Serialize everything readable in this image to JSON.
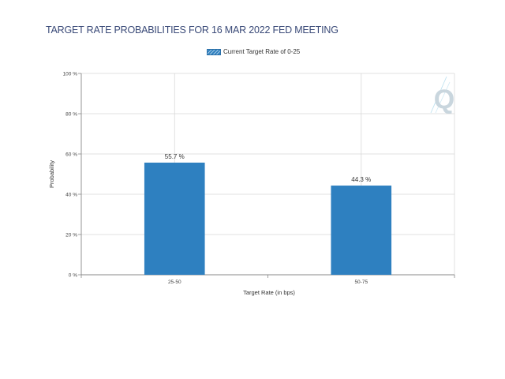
{
  "chart_data": {
    "type": "bar",
    "title": "TARGET RATE PROBABILITIES FOR 16 MAR 2022 FED MEETING",
    "xlabel": "Target Rate (in bps)",
    "ylabel": "Probability",
    "categories": [
      "25-50",
      "50-75"
    ],
    "series": [
      {
        "name": "Current Target Rate of 0-25",
        "values": [
          55.7,
          44.3
        ],
        "data_labels": [
          "55.7 %",
          "44.3 %"
        ]
      }
    ],
    "ylim": [
      0,
      100
    ],
    "yticks": [
      0,
      20,
      40,
      60,
      80,
      100
    ],
    "ytick_labels": [
      "0 %",
      "20 %",
      "40 %",
      "60 %",
      "80 %",
      "100 %"
    ],
    "grid": true,
    "legend_position": "top-center",
    "bar_color": "#2e80c0",
    "title_color": "#3a4a78",
    "watermark": "Q"
  }
}
